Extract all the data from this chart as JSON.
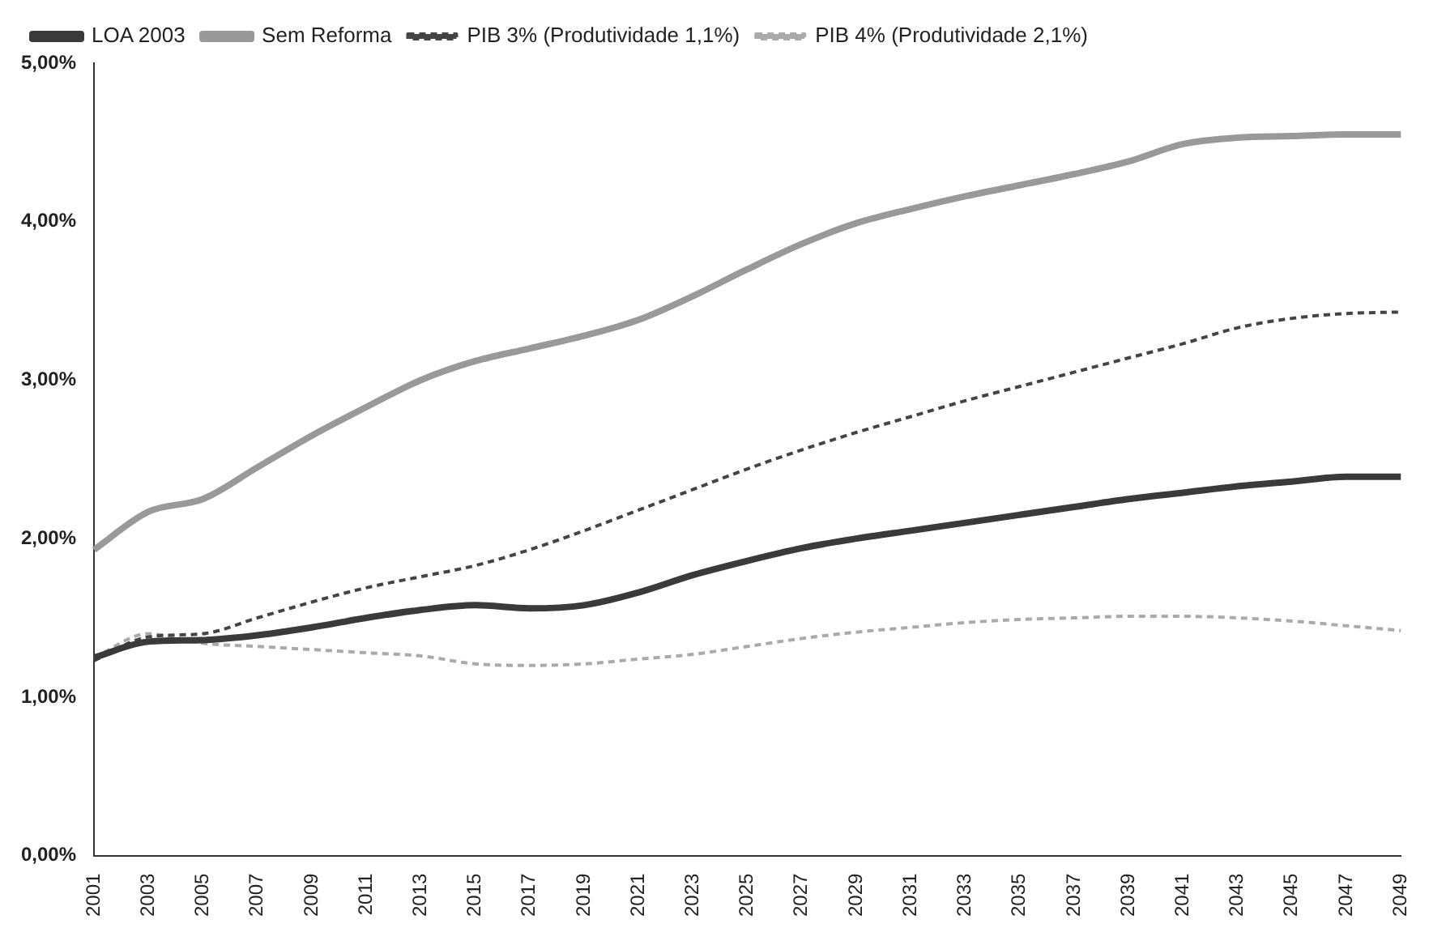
{
  "chart_data": {
    "type": "line",
    "categories": [
      "2001",
      "2003",
      "2005",
      "2007",
      "2009",
      "2011",
      "2013",
      "2015",
      "2017",
      "2019",
      "2021",
      "2023",
      "2025",
      "2027",
      "2029",
      "2031",
      "2033",
      "2035",
      "2037",
      "2039",
      "2041",
      "2043",
      "2045",
      "2047",
      "2049"
    ],
    "ylim": [
      0,
      5
    ],
    "yticks": [
      {
        "value": 0,
        "label": "0,00%"
      },
      {
        "value": 1,
        "label": "1,00%"
      },
      {
        "value": 2,
        "label": "2,00%"
      },
      {
        "value": 3,
        "label": "3,00%"
      },
      {
        "value": 4,
        "label": "4,00%"
      },
      {
        "value": 5,
        "label": "5,00%"
      }
    ],
    "grid": false,
    "legend": "top left",
    "marker": "none",
    "series": [
      {
        "name": "LOA 2003",
        "color": "#3a3a3a",
        "line_style": "solid",
        "values": [
          1.25,
          1.35,
          1.36,
          1.39,
          1.44,
          1.5,
          1.55,
          1.58,
          1.56,
          1.58,
          1.66,
          1.77,
          1.86,
          1.94,
          2.0,
          2.05,
          2.1,
          2.15,
          2.2,
          2.25,
          2.29,
          2.33,
          2.36,
          2.39,
          2.39
        ]
      },
      {
        "name": "Sem Reforma",
        "color": "#999999",
        "line_style": "solid",
        "values": [
          1.93,
          2.17,
          2.25,
          2.45,
          2.65,
          2.83,
          3.0,
          3.12,
          3.2,
          3.28,
          3.38,
          3.53,
          3.7,
          3.86,
          3.99,
          4.08,
          4.16,
          4.23,
          4.3,
          4.38,
          4.49,
          4.53,
          4.54,
          4.55,
          4.55
        ]
      },
      {
        "name": "PIB 3% (Produtividade 1,1%)",
        "color": "#444444",
        "line_style": "dashed",
        "values": [
          1.23,
          1.38,
          1.4,
          1.5,
          1.6,
          1.69,
          1.76,
          1.83,
          1.93,
          2.05,
          2.18,
          2.31,
          2.44,
          2.56,
          2.67,
          2.77,
          2.87,
          2.96,
          3.05,
          3.14,
          3.23,
          3.33,
          3.39,
          3.42,
          3.43
        ]
      },
      {
        "name": "PIB 4% (Produtividade 2,1%)",
        "color": "#aaaaaa",
        "line_style": "dashed",
        "values": [
          1.25,
          1.4,
          1.34,
          1.32,
          1.3,
          1.28,
          1.26,
          1.21,
          1.2,
          1.21,
          1.24,
          1.27,
          1.32,
          1.37,
          1.41,
          1.44,
          1.47,
          1.49,
          1.5,
          1.51,
          1.51,
          1.5,
          1.48,
          1.45,
          1.42
        ]
      }
    ]
  }
}
